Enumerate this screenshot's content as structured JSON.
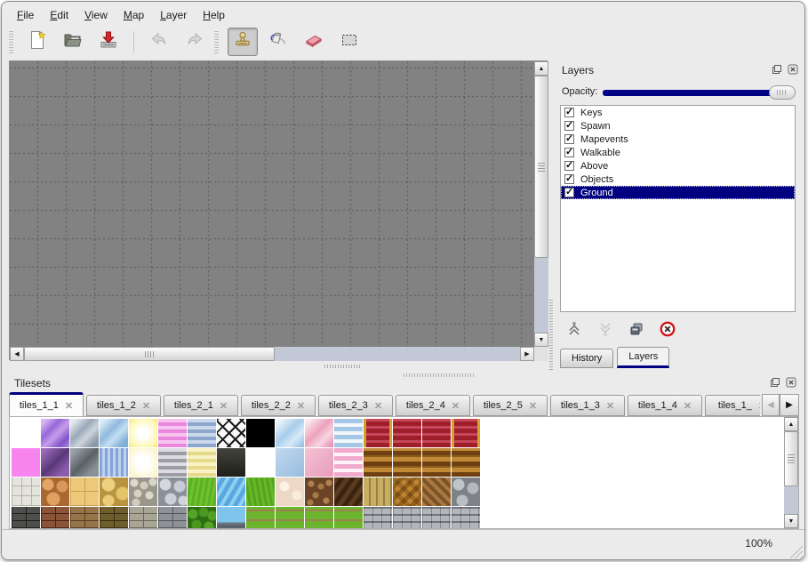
{
  "menu": {
    "items": [
      "File",
      "Edit",
      "View",
      "Map",
      "Layer",
      "Help"
    ]
  },
  "toolbar": {
    "buttons": [
      {
        "name": "new-file",
        "enabled": true
      },
      {
        "name": "open",
        "enabled": true
      },
      {
        "name": "save",
        "enabled": true
      },
      {
        "name": "undo",
        "enabled": false
      },
      {
        "name": "redo",
        "enabled": false
      },
      {
        "name": "stamp-tool",
        "enabled": true,
        "active": true
      },
      {
        "name": "fill-tool",
        "enabled": true
      },
      {
        "name": "eraser-tool",
        "enabled": true
      },
      {
        "name": "rect-select-tool",
        "enabled": true
      }
    ]
  },
  "layers_panel": {
    "title": "Layers",
    "opacity_label": "Opacity:",
    "opacity_value": 100,
    "accent_color": "#000080",
    "layers": [
      {
        "name": "Keys",
        "visible": true,
        "selected": false
      },
      {
        "name": "Spawn",
        "visible": true,
        "selected": false
      },
      {
        "name": "Mapevents",
        "visible": true,
        "selected": false
      },
      {
        "name": "Walkable",
        "visible": true,
        "selected": false
      },
      {
        "name": "Above",
        "visible": true,
        "selected": false
      },
      {
        "name": "Objects",
        "visible": true,
        "selected": false
      },
      {
        "name": "Ground",
        "visible": true,
        "selected": true
      }
    ],
    "action_icons": [
      "move-layer-up",
      "move-layer-down",
      "duplicate-layer",
      "delete-layer"
    ],
    "tabs": [
      {
        "label": "History",
        "active": false
      },
      {
        "label": "Layers",
        "active": true
      }
    ]
  },
  "tilesets_panel": {
    "title": "Tilesets",
    "tabs": [
      {
        "label": "tiles_1_1",
        "active": true
      },
      {
        "label": "tiles_1_2",
        "active": false
      },
      {
        "label": "tiles_2_1",
        "active": false
      },
      {
        "label": "tiles_2_2",
        "active": false
      },
      {
        "label": "tiles_2_3",
        "active": false
      },
      {
        "label": "tiles_2_4",
        "active": false
      },
      {
        "label": "tiles_2_5",
        "active": false
      },
      {
        "label": "tiles_1_3",
        "active": false
      },
      {
        "label": "tiles_1_4",
        "active": false
      },
      {
        "label": "tiles_1_",
        "active": false
      }
    ],
    "tile_size": 32,
    "tile_rows": [
      [
        "#ffffff",
        "linear-gradient(135deg,#d8b8f4 10%,#9668d8 35%,#c89cec 55%,#8054c8 80%,#b088e4 100%)",
        "linear-gradient(135deg,#e6eaee 10%,#9aa8b8 40%,#ccd4dc 60%,#8c9aaa 85%)",
        "linear-gradient(135deg,#d8ecf8 10%,#90b8dc 40%,#c4dff2 60%,#7fb0d8 85%)",
        "radial-gradient(circle,#ffffff 25%,#fdf6b0 75%,#f2e27a 100%)",
        "repeating-linear-gradient(0deg,#ea86dc 0 4px,#f6c4ee 4px 8px)",
        "repeating-linear-gradient(0deg,#8ca6cc 0 4px,#ccd8ec 4px 8px)",
        "repeating-linear-gradient(45deg,#1a1a1a 0 2px,rgba(0,0,0,0) 2px 10px),repeating-linear-gradient(135deg,#1a1a1a 0 2px,rgba(0,0,0,0) 2px 10px),linear-gradient(#f8f8f8,#f8f8f8)",
        "#000000",
        "linear-gradient(135deg,#eaf4fb 10%,#a8cdea 45%,#d6eaf8 70%,#98c2e4 95%)",
        "linear-gradient(135deg,#fbe8f0 10%,#eda0bc 45%,#f8d6e4 70%,#e690b2 95%)",
        "repeating-linear-gradient(0deg,#a6c6e6 0 5px,#f2f7fc 5px 9px)",
        "linear-gradient(90deg,#d4a22c 0 3px,rgba(0,0,0,0) 3px 29px,#d4a22c 29px),repeating-linear-gradient(0deg,#9e1e2a 0 5px,#c4485a 5px 8px)",
        "repeating-linear-gradient(0deg,#9e1e2a 0 5px,#c4485a 5px 8px)",
        "repeating-linear-gradient(0deg,#9e1e2a 0 5px,#c4485a 5px 8px)",
        "linear-gradient(90deg,#d4a22c 0 3px,rgba(0,0,0,0) 3px 29px,#d4a22c 29px),repeating-linear-gradient(0deg,#9e1e2a 0 5px,#c4485a 5px 8px)"
      ],
      [
        "#f884f0",
        "linear-gradient(135deg,#9a6ab8 10%,#5a3878 50%,#8a5cac 80%)",
        "linear-gradient(135deg,#9aa2a8 10%,#5a6268 50%,#8a9298 80%)",
        "repeating-linear-gradient(90deg,#84a4d8 0 3px,#bcd2ee 3px 6px)",
        "radial-gradient(circle,#ffffff 30%,#faf2c0 100%)",
        "repeating-linear-gradient(0deg,#9c9ca4 0 4px,#dcdce2 4px 8px)",
        "repeating-linear-gradient(0deg,#e6da8a 0 4px,#f8f2c6 4px 8px)",
        "linear-gradient(180deg,#44443e,#1e1e1a)",
        "#ffffff",
        "linear-gradient(135deg,#c2d9ee,#96bce0)",
        "linear-gradient(135deg,#f4c2d4,#e89cba)",
        "repeating-linear-gradient(0deg,#f0aacb 0 5px,#fdf3f8 5px 9px)",
        "repeating-linear-gradient(0deg,#6e4012 0 5px,#c28a36 5px 10px,#8a5c1e 10px 12px)",
        "repeating-linear-gradient(0deg,#6e4012 0 5px,#c28a36 5px 10px,#8a5c1e 10px 12px)",
        "repeating-linear-gradient(0deg,#6e4012 0 5px,#c28a36 5px 10px,#8a5c1e 10px 12px)",
        "repeating-linear-gradient(0deg,#6e4012 0 5px,#c28a36 5px 10px,#8a5c1e 10px 12px)"
      ],
      [
        "repeating-linear-gradient(0deg,#b4b4ac 0 1px,rgba(0,0,0,0) 1px 11px),repeating-linear-gradient(90deg,#b4b4ac 0 1px,#e4e4dc 1px 11px)",
        "radial-gradient(circle at 8px 8px,#e2a668 6px,rgba(0,0,0,0) 7px),radial-gradient(circle at 24px 10px,#d89858 6px,rgba(0,0,0,0) 7px),radial-gradient(circle at 14px 24px,#e0a060 7px,rgba(0,0,0,0) 8px),linear-gradient(#a86830,#a86830)",
        "repeating-linear-gradient(0deg,#c8a050 0 1px,rgba(0,0,0,0) 1px 16px),repeating-linear-gradient(90deg,#c8a050 0 1px,#ecc878 1px 16px)",
        "radial-gradient(circle at 10px 8px,#ecd080 7px,rgba(0,0,0,0) 8px),radial-gradient(circle at 26px 18px,#e4c468 7px,rgba(0,0,0,0) 8px),radial-gradient(circle at 10px 26px,#e8cc78 6px,rgba(0,0,0,0) 7px),linear-gradient(#b89440,#b89440)",
        "radial-gradient(circle at 6px 6px,#dcd8cc 4px,rgba(0,0,0,0) 5px),radial-gradient(circle at 17px 9px,#d0ccc0 4px,rgba(0,0,0,0) 5px),radial-gradient(circle at 27px 5px,#d8d4c8 4px,rgba(0,0,0,0) 5px),radial-gradient(circle at 10px 18px,#d4d0c4 4px,rgba(0,0,0,0) 5px),radial-gradient(circle at 23px 20px,#dcd8cc 4px,rgba(0,0,0,0) 5px),radial-gradient(circle at 8px 28px,#d0ccc0 4px,rgba(0,0,0,0) 5px),linear-gradient(#9a968a,#9a968a)",
        "radial-gradient(circle at 8px 8px,#d4d8dc 6px,rgba(0,0,0,0) 7px),radial-gradient(circle at 24px 10px,#c8ccd4 6px,rgba(0,0,0,0) 7px),radial-gradient(circle at 14px 24px,#ccd0d8 6px,rgba(0,0,0,0) 7px),radial-gradient(circle at 28px 26px,#d0d4da 5px,rgba(0,0,0,0) 6px),linear-gradient(#8a9098,#8a9098)",
        "repeating-linear-gradient(100deg,#70c030 0 3px,#5cb022 3px 6px)",
        "repeating-linear-gradient(120deg,#8ed0f4 0 4px,#5aa8e0 4px 9px)",
        "repeating-linear-gradient(80deg,#68b82a 0 3px,#54a41e 3px 6px)",
        "radial-gradient(circle at 10px 10px,#fcf2e6 5px,rgba(0,0,0,0) 6px),radial-gradient(circle at 24px 20px,#f8ecda 5px,rgba(0,0,0,0) 6px),linear-gradient(#ecd8c4,#ecd8c4)",
        "radial-gradient(circle at 7px 7px,#b08050 3px,rgba(0,0,0,0) 4px),radial-gradient(circle at 18px 10px,#a87846 3px,rgba(0,0,0,0) 4px),radial-gradient(circle at 27px 6px,#b08452 3px,rgba(0,0,0,0) 4px),radial-gradient(circle at 12px 20px,#a87848 3px,rgba(0,0,0,0) 4px),radial-gradient(circle at 24px 26px,#b08050 3px,rgba(0,0,0,0) 4px),radial-gradient(circle at 6px 28px,#a87846 3px,rgba(0,0,0,0) 4px),linear-gradient(#6a4424,#6a4424)",
        "repeating-linear-gradient(125deg,#5a3a20 0 5px,#3a2410 5px 10px)",
        "repeating-linear-gradient(90deg,#c8ae62 0 6px,#9a8040 6px 8px)",
        "repeating-linear-gradient(45deg,rgba(0,0,0,.18) 0 5px,rgba(0,0,0,0) 5px 10px),repeating-linear-gradient(135deg,#c08432 0 5px,#95621c 5px 10px)",
        "repeating-linear-gradient(45deg,#a87840 0 4px,#7c5226 4px 8px)",
        "radial-gradient(circle at 8px 8px,#c0c4c8 6px,rgba(0,0,0,0) 7px),radial-gradient(circle at 24px 12px,#b4b8bc 6px,rgba(0,0,0,0) 7px),radial-gradient(circle at 12px 26px,#babec2 6px,rgba(0,0,0,0) 7px),linear-gradient(#7e8286,#7e8286)"
      ],
      [
        "repeating-linear-gradient(0deg,#1e1e1c 0 1px,rgba(0,0,0,0) 1px 8px),repeating-linear-gradient(90deg,#1e1e1c 0 1px,#4e4e4c 1px 16px)",
        "repeating-linear-gradient(0deg,#4a2414 0 1px,rgba(0,0,0,0) 1px 8px),repeating-linear-gradient(90deg,#4a2414 0 1px,#8a5438 1px 16px)",
        "repeating-linear-gradient(0deg,#5a3c1e 0 1px,rgba(0,0,0,0) 1px 8px),repeating-linear-gradient(90deg,#5a3c1e 0 1px,#96744a 1px 16px)",
        "repeating-linear-gradient(0deg,#3a2e10 0 1px,rgba(0,0,0,0) 1px 8px),repeating-linear-gradient(90deg,#3a2e10 0 1px,#6e5e2e 1px 16px)",
        "repeating-linear-gradient(0deg,#6a665a 0 1px,rgba(0,0,0,0) 1px 8px),repeating-linear-gradient(90deg,#6a665a 0 1px,#a8a496 1px 16px)",
        "repeating-linear-gradient(0deg,#54585c 0 1px,rgba(0,0,0,0) 1px 8px),repeating-linear-gradient(90deg,#54585c 0 1px,#8e9296 1px 16px)",
        "radial-gradient(circle at 6px 8px,#54a428 5px,rgba(0,0,0,0) 6px),radial-gradient(circle at 18px 6px,#4a9820 5px,rgba(0,0,0,0) 6px),radial-gradient(circle at 28px 10px,#50a024 5px,rgba(0,0,0,0) 6px),radial-gradient(circle at 10px 20px,#4a9820 5px,rgba(0,0,0,0) 6px),radial-gradient(circle at 24px 22px,#54a428 5px,rgba(0,0,0,0) 6px),linear-gradient(#2e6e12,#2e6e12)",
        "linear-gradient(180deg,#7ec4ec 0 55%,#68757f 55% 62%,#59646e 62%)",
        "repeating-linear-gradient(0deg,#6cb42e 0 5px,#a08050 5px 7px,#6cb42e 7px 11px)",
        "repeating-linear-gradient(0deg,#6cb42e 0 5px,#a08050 5px 7px,#6cb42e 7px 11px)",
        "repeating-linear-gradient(0deg,#6cb42e 0 5px,#a08050 5px 7px,#6cb42e 7px 11px)",
        "repeating-linear-gradient(0deg,#6cb42e 0 5px,#a08050 5px 7px,#6cb42e 7px 11px)",
        "repeating-linear-gradient(90deg,rgba(0,0,0,.25) 0 1px,rgba(0,0,0,0) 1px 10px),repeating-linear-gradient(0deg,#b2b6ba 0 6px,#70747a 6px 8px)",
        "repeating-linear-gradient(90deg,rgba(0,0,0,.25) 0 1px,rgba(0,0,0,0) 1px 10px),repeating-linear-gradient(0deg,#b2b6ba 0 6px,#70747a 6px 8px)",
        "repeating-linear-gradient(90deg,rgba(0,0,0,.25) 0 1px,rgba(0,0,0,0) 1px 10px),repeating-linear-gradient(0deg,#b2b6ba 0 6px,#70747a 6px 8px)",
        "repeating-linear-gradient(90deg,rgba(0,0,0,.25) 0 1px,rgba(0,0,0,0) 1px 10px),repeating-linear-gradient(0deg,#b2b6ba 0 6px,#70747a 6px 8px)"
      ]
    ]
  },
  "status_bar": {
    "zoom_level": "100%"
  },
  "colors": {
    "accent": "#000080",
    "canvas_bg": "#828282",
    "grid_line": "#545454"
  }
}
